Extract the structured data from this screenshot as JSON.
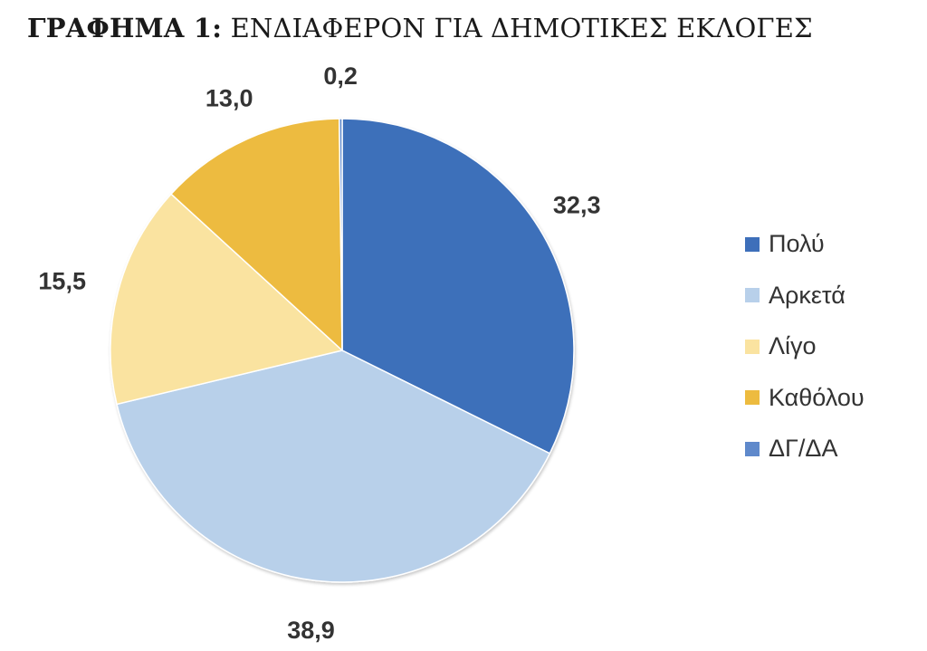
{
  "title": {
    "bold": "ΓΡΑΦΗΜΑ 1:",
    "text": "ΕΝΔΙΑΦΕΡΟΝ ΓΙΑ ΔΗΜΟΤΙΚΕΣ ΕΚΛΟΓΕΣ"
  },
  "chart_data": {
    "type": "pie",
    "title": "ΓΡΑΦΗΜΑ 1: ΕΝΔΙΑΦΕΡΟΝ ΓΙΑ ΔΗΜΟΤΙΚΕΣ ΕΚΛΟΓΕΣ",
    "categories": [
      "Πολύ",
      "Αρκετά",
      "Λίγο",
      "Καθόλου",
      "ΔΓ/ΔΑ"
    ],
    "values": [
      32.3,
      38.9,
      15.5,
      13.0,
      0.2
    ],
    "value_labels": [
      "32,3",
      "38,9",
      "15,5",
      "13,0",
      "0,2"
    ],
    "colors": [
      "#3E6FBA",
      "#B8D0EA",
      "#FAE3A0",
      "#EDBB3F",
      "#5F89CB"
    ],
    "start_angle": "12 o'clock",
    "direction": "clockwise",
    "legend_position": "right",
    "data_labels": "outside"
  }
}
